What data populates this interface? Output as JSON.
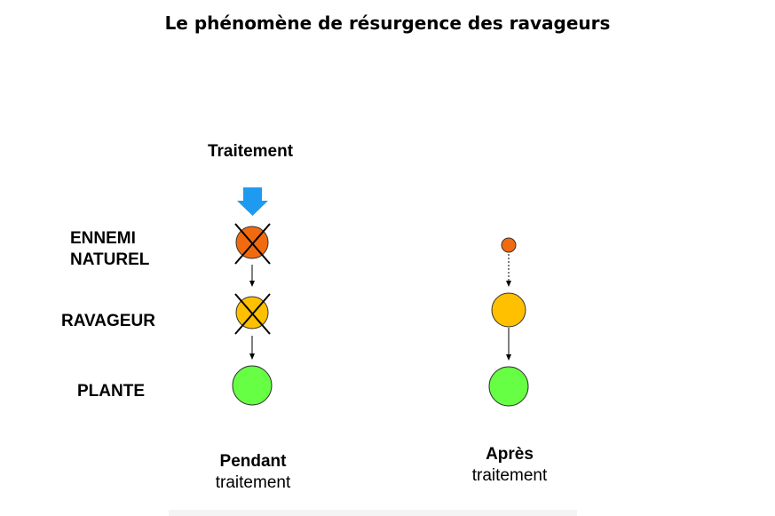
{
  "title": "Le phénomène de résurgence des ravageurs",
  "treatment_label": "Traitement",
  "levels": {
    "ennemi_line1": "ENNEMI",
    "ennemi_line2": "NATUREL",
    "ravageur": "RAVAGEUR",
    "plante": "PLANTE"
  },
  "captions": {
    "during_bold": "Pendant",
    "during_sub": "traitement",
    "after_bold": "Après",
    "after_sub": "traitement"
  },
  "colors": {
    "ennemi": "#f26a10",
    "ravageur": "#ffc000",
    "plante": "#66ff44",
    "treatment_arrow": "#1e9bf0"
  }
}
